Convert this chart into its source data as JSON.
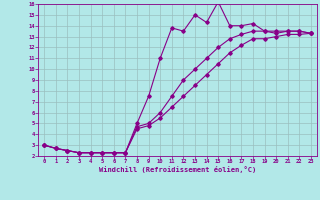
{
  "title": "",
  "xlabel": "Windchill (Refroidissement éolien,°C)",
  "bg_color": "#b2e8e8",
  "grid_color": "#9bbfbf",
  "line_color": "#880088",
  "xlim": [
    -0.5,
    23.5
  ],
  "ylim": [
    2,
    16
  ],
  "xticks": [
    0,
    1,
    2,
    3,
    4,
    5,
    6,
    7,
    8,
    9,
    10,
    11,
    12,
    13,
    14,
    15,
    16,
    17,
    18,
    19,
    20,
    21,
    22,
    23
  ],
  "yticks": [
    2,
    3,
    4,
    5,
    6,
    7,
    8,
    9,
    10,
    11,
    12,
    13,
    14,
    15,
    16
  ],
  "line1_x": [
    0,
    1,
    2,
    3,
    4,
    5,
    6,
    7,
    8,
    9,
    10,
    11,
    12,
    13,
    14,
    15,
    16,
    17,
    18,
    19,
    20,
    21,
    22,
    23
  ],
  "line1_y": [
    3.0,
    2.7,
    2.5,
    2.3,
    2.3,
    2.3,
    2.3,
    2.3,
    5.0,
    7.5,
    11.0,
    13.8,
    13.5,
    15.0,
    14.3,
    16.2,
    14.0,
    14.0,
    14.2,
    13.5,
    13.3,
    13.5,
    13.5,
    13.3
  ],
  "line2_x": [
    0,
    1,
    2,
    3,
    4,
    5,
    6,
    7,
    8,
    9,
    10,
    11,
    12,
    13,
    14,
    15,
    16,
    17,
    18,
    19,
    20,
    21,
    22,
    23
  ],
  "line2_y": [
    3.0,
    2.7,
    2.5,
    2.3,
    2.3,
    2.3,
    2.3,
    2.3,
    4.7,
    5.0,
    6.0,
    7.5,
    9.0,
    10.0,
    11.0,
    12.0,
    12.8,
    13.2,
    13.5,
    13.5,
    13.5,
    13.5,
    13.5,
    13.3
  ],
  "line3_x": [
    0,
    1,
    2,
    3,
    4,
    5,
    6,
    7,
    8,
    9,
    10,
    11,
    12,
    13,
    14,
    15,
    16,
    17,
    18,
    19,
    20,
    21,
    22,
    23
  ],
  "line3_y": [
    3.0,
    2.7,
    2.5,
    2.3,
    2.3,
    2.3,
    2.3,
    2.3,
    4.5,
    4.8,
    5.5,
    6.5,
    7.5,
    8.5,
    9.5,
    10.5,
    11.5,
    12.2,
    12.8,
    12.8,
    13.0,
    13.2,
    13.2,
    13.3
  ]
}
